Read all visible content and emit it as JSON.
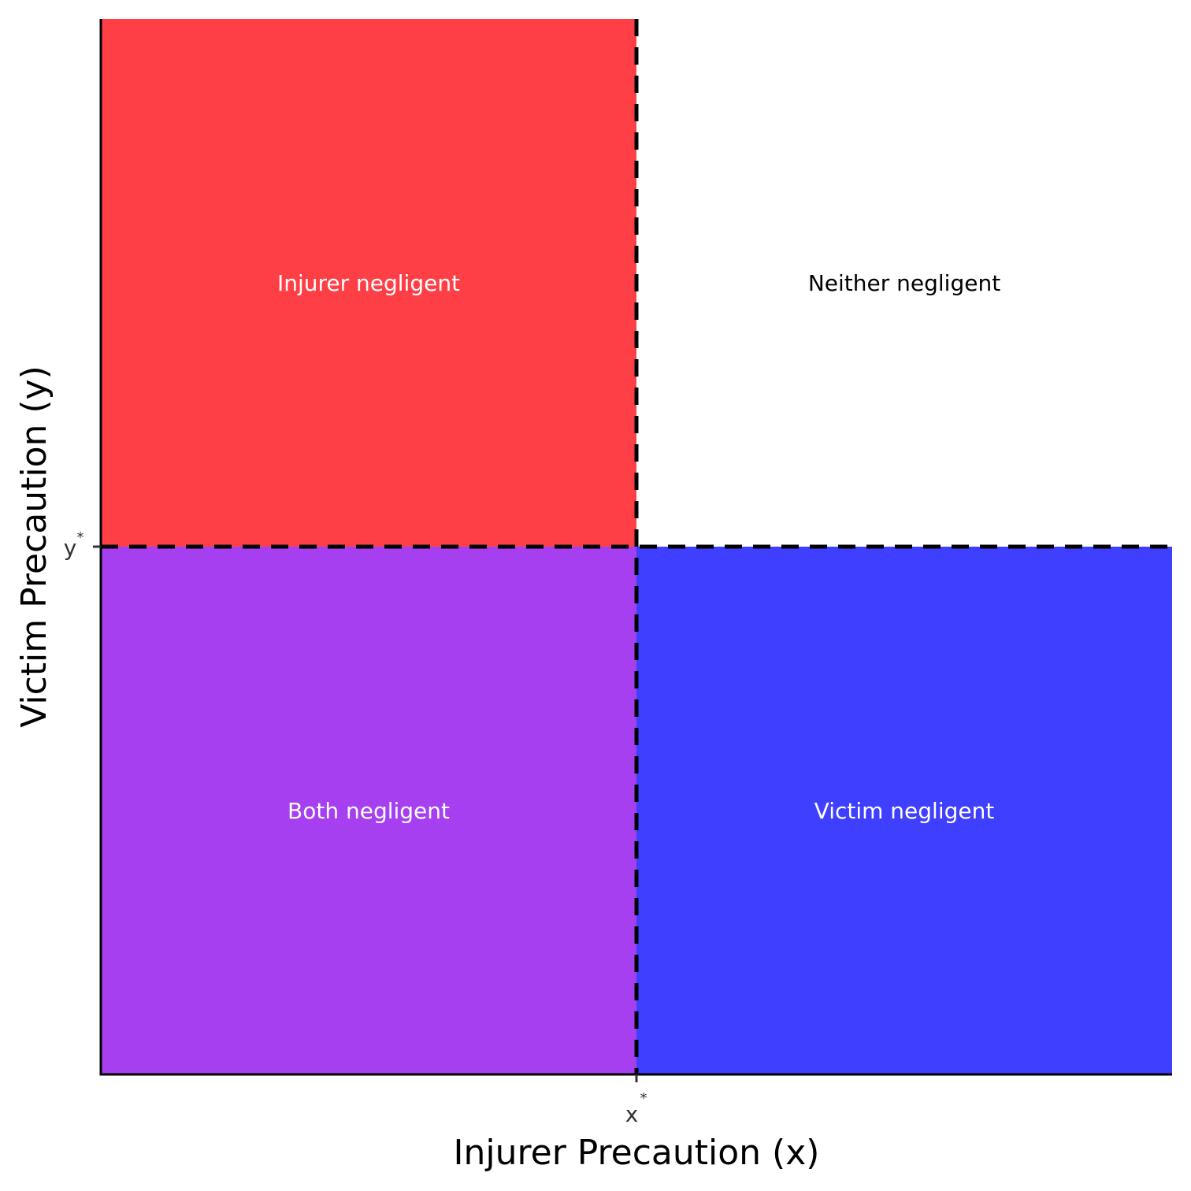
{
  "chart_data": {
    "type": "heatmap",
    "title": "",
    "xlabel": "Injurer Precaution (x)",
    "ylabel": "Victim Precaution (y)",
    "xlim": [
      0,
      2
    ],
    "ylim": [
      0,
      2
    ],
    "x_threshold": 1,
    "y_threshold": 1,
    "x_ticks": [
      {
        "value": 1,
        "label": "x",
        "sup": "*"
      }
    ],
    "y_ticks": [
      {
        "value": 1,
        "label": "y",
        "sup": "*"
      }
    ],
    "grid": false,
    "regions": [
      {
        "label": "Injurer negligent",
        "x": [
          0,
          1
        ],
        "y": [
          1,
          2
        ],
        "color": "#FF3F46",
        "text_color": "#ffffff"
      },
      {
        "label": "Neither negligent",
        "x": [
          1,
          2
        ],
        "y": [
          1,
          2
        ],
        "color": "#FFFFFF",
        "text_color": "#000000"
      },
      {
        "label": "Both negligent",
        "x": [
          0,
          1
        ],
        "y": [
          0,
          1
        ],
        "color": "#A63FF0",
        "text_color": "#ffffff"
      },
      {
        "label": "Victim negligent",
        "x": [
          1,
          2
        ],
        "y": [
          0,
          1
        ],
        "color": "#3F3FFF",
        "text_color": "#ffffff"
      }
    ]
  }
}
